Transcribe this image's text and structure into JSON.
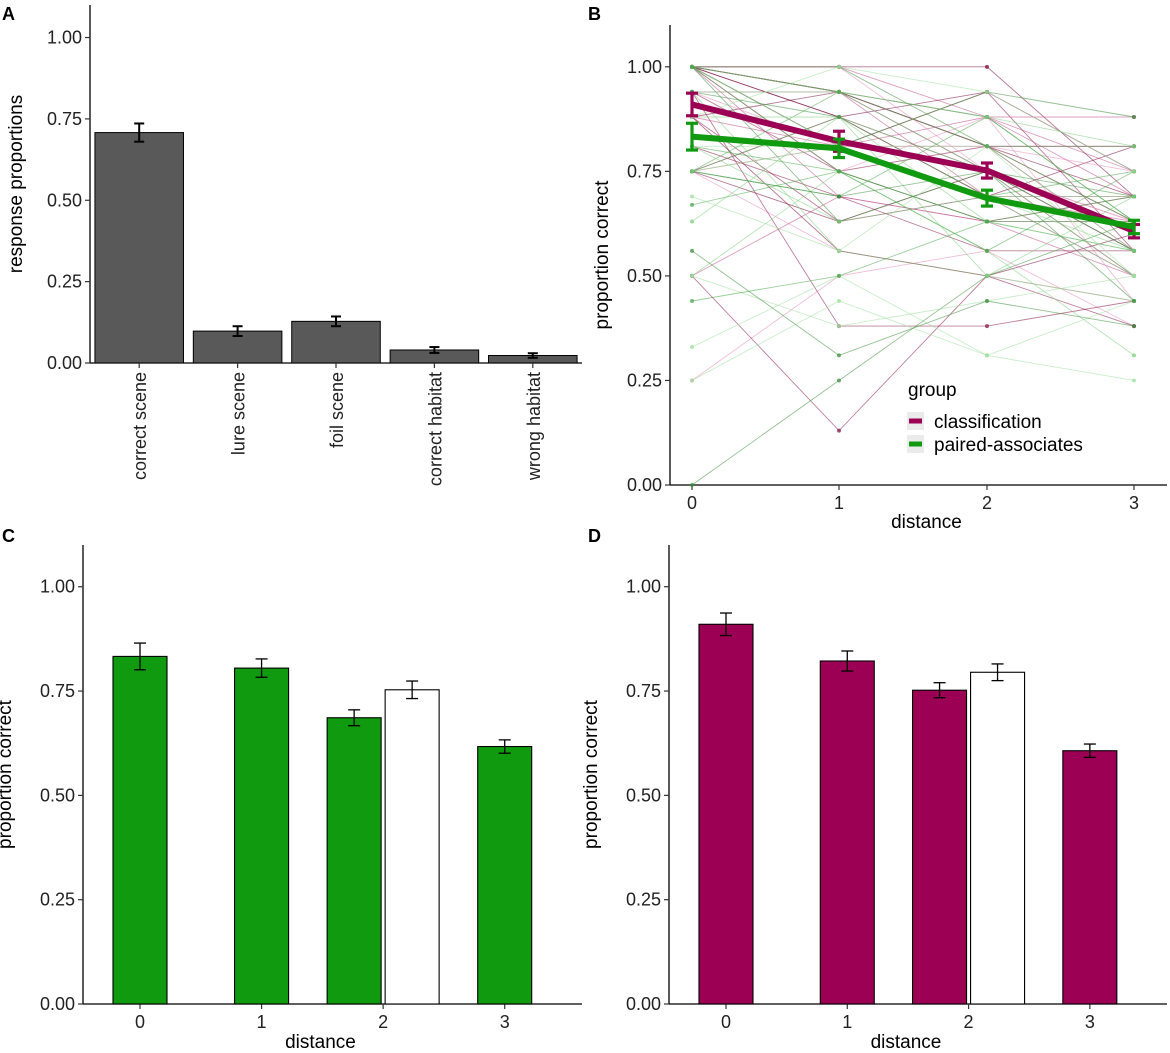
{
  "chart_data": [
    {
      "panel": "A",
      "type": "bar",
      "ylabel": "response proportions",
      "xlabel": "",
      "ylim": [
        0,
        1.1
      ],
      "yticks": [
        "0.00",
        "0.25",
        "0.50",
        "0.75",
        "1.00"
      ],
      "categories": [
        "correct scene",
        "lure scene",
        "foil scene",
        "correct habitat",
        "wrong habitat"
      ],
      "values": [
        0.708,
        0.098,
        0.128,
        0.04,
        0.023
      ],
      "errors": [
        0.028,
        0.015,
        0.015,
        0.009,
        0.007
      ],
      "color": "#595959"
    },
    {
      "panel": "B",
      "type": "line",
      "ylabel": "proportion correct",
      "xlabel": "distance",
      "xticks": [
        "0",
        "1",
        "2",
        "3"
      ],
      "ylim": [
        0,
        1.1
      ],
      "yticks": [
        "0.00",
        "0.25",
        "0.50",
        "0.75",
        "1.00"
      ],
      "legend": {
        "title": "group",
        "position": "bottom-right",
        "entries": [
          "classification",
          "paired-associates"
        ]
      },
      "series": [
        {
          "name": "classification",
          "color": "#9b0054",
          "x": [
            0,
            1,
            2,
            3
          ],
          "values": [
            0.91,
            0.822,
            0.752,
            0.607
          ],
          "errors": [
            0.027,
            0.024,
            0.018,
            0.016
          ]
        },
        {
          "name": "paired-associates",
          "color": "#0f9a0f",
          "x": [
            0,
            1,
            2,
            3
          ],
          "values": [
            0.833,
            0.805,
            0.686,
            0.617
          ],
          "errors": [
            0.032,
            0.022,
            0.019,
            0.016
          ]
        }
      ],
      "individual_lines": {
        "classification": [
          [
            1.0,
            0.94,
            0.81,
            0.63
          ],
          [
            1.0,
            1.0,
            0.88,
            0.75
          ],
          [
            0.75,
            0.56,
            0.5,
            0.44
          ],
          [
            0.88,
            0.94,
            0.81,
            0.69
          ],
          [
            1.0,
            0.81,
            0.94,
            0.56
          ],
          [
            0.5,
            0.69,
            0.63,
            0.5
          ],
          [
            0.75,
            0.88,
            0.75,
            0.63
          ],
          [
            1.0,
            0.88,
            0.69,
            0.81
          ],
          [
            1.0,
            0.75,
            0.81,
            0.56
          ],
          [
            0.94,
            0.94,
            0.88,
            0.69
          ],
          [
            0.25,
            0.5,
            0.56,
            0.38
          ],
          [
            1.0,
            1.0,
            1.0,
            0.69
          ],
          [
            0.88,
            0.63,
            0.75,
            0.5
          ],
          [
            1.0,
            0.69,
            0.63,
            0.63
          ],
          [
            0.75,
            0.81,
            0.81,
            0.75
          ],
          [
            1.0,
            0.94,
            0.75,
            0.56
          ],
          [
            0.94,
            0.38,
            0.38,
            0.44
          ],
          [
            0.75,
            0.88,
            0.69,
            0.69
          ],
          [
            1.0,
            0.75,
            0.88,
            0.44
          ],
          [
            0.88,
            0.56,
            0.5,
            0.6
          ],
          [
            0.5,
            0.13,
            0.5,
            0.38
          ],
          [
            1.0,
            0.94,
            0.69,
            0.63
          ],
          [
            0.94,
            0.81,
            0.81,
            0.81
          ],
          [
            1.0,
            0.88,
            0.94,
            0.75
          ],
          [
            0.81,
            0.69,
            0.56,
            0.56
          ],
          [
            0.88,
            0.81,
            0.88,
            0.88
          ],
          [
            1.0,
            1.0,
            0.75,
            0.63
          ],
          [
            0.75,
            0.63,
            0.69,
            0.5
          ],
          [
            0.94,
            0.75,
            0.63,
            0.69
          ],
          [
            1.0,
            0.94,
            0.81,
            0.81
          ]
        ],
        "paired-associates": [
          [
            0.67,
            0.75,
            0.63,
            0.56
          ],
          [
            1.0,
            0.94,
            0.75,
            0.5
          ],
          [
            0.33,
            0.5,
            0.31,
            0.44
          ],
          [
            0.0,
            0.25,
            0.5,
            0.63
          ],
          [
            0.75,
            0.88,
            0.69,
            0.75
          ],
          [
            0.5,
            0.75,
            0.56,
            0.31
          ],
          [
            0.81,
            0.81,
            0.81,
            0.56
          ],
          [
            1.0,
            0.63,
            0.75,
            0.69
          ],
          [
            0.75,
            0.94,
            0.88,
            0.63
          ],
          [
            0.88,
            0.88,
            0.63,
            0.56
          ],
          [
            0.5,
            0.38,
            0.44,
            0.5
          ],
          [
            1.0,
            1.0,
            0.81,
            0.81
          ],
          [
            0.75,
            0.69,
            0.88,
            0.63
          ],
          [
            0.94,
            0.56,
            0.5,
            0.69
          ],
          [
            0.25,
            0.44,
            0.31,
            0.25
          ],
          [
            1.0,
            0.81,
            0.94,
            0.88
          ],
          [
            0.81,
            0.75,
            0.56,
            0.75
          ],
          [
            0.63,
            0.88,
            0.5,
            0.44
          ],
          [
            1.0,
            0.81,
            0.69,
            0.5
          ],
          [
            0.75,
            0.69,
            0.75,
            0.56
          ],
          [
            0.44,
            0.5,
            0.63,
            0.69
          ],
          [
            0.94,
            0.94,
            0.88,
            0.81
          ],
          [
            0.88,
            1.0,
            0.94,
            0.75
          ],
          [
            0.56,
            0.31,
            0.44,
            0.38
          ],
          [
            1.0,
            0.75,
            0.63,
            0.63
          ],
          [
            0.75,
            0.81,
            0.69,
            0.69
          ],
          [
            0.69,
            0.56,
            0.81,
            0.5
          ],
          [
            0.94,
            0.88,
            0.75,
            0.44
          ],
          [
            1.0,
            0.94,
            0.81,
            0.63
          ],
          [
            0.81,
            0.63,
            0.69,
            0.56
          ]
        ]
      }
    },
    {
      "panel": "C",
      "type": "bar",
      "ylabel": "proportion correct",
      "xlabel": "distance",
      "xticks": [
        "0",
        "1",
        "2",
        "3"
      ],
      "ylim": [
        0,
        1.1
      ],
      "yticks": [
        "0.00",
        "0.25",
        "0.50",
        "0.75",
        "1.00"
      ],
      "bars": [
        {
          "x": 0,
          "offset": 0,
          "value": 0.833,
          "error": 0.032,
          "fill": "#0f9a0f"
        },
        {
          "x": 1,
          "offset": 0,
          "value": 0.805,
          "error": 0.022,
          "fill": "#0f9a0f"
        },
        {
          "x": 2,
          "offset": -1,
          "value": 0.686,
          "error": 0.019,
          "fill": "#0f9a0f"
        },
        {
          "x": 2,
          "offset": 1,
          "value": 0.753,
          "error": 0.021,
          "fill": "#ffffff"
        },
        {
          "x": 3,
          "offset": 0,
          "value": 0.617,
          "error": 0.016,
          "fill": "#0f9a0f"
        }
      ]
    },
    {
      "panel": "D",
      "type": "bar",
      "ylabel": "proportion correct",
      "xlabel": "distance",
      "xticks": [
        "0",
        "1",
        "2",
        "3"
      ],
      "ylim": [
        0,
        1.1
      ],
      "yticks": [
        "0.00",
        "0.25",
        "0.50",
        "0.75",
        "1.00"
      ],
      "bars": [
        {
          "x": 0,
          "offset": 0,
          "value": 0.91,
          "error": 0.027,
          "fill": "#9b0054"
        },
        {
          "x": 1,
          "offset": 0,
          "value": 0.822,
          "error": 0.024,
          "fill": "#9b0054"
        },
        {
          "x": 2,
          "offset": -1,
          "value": 0.752,
          "error": 0.018,
          "fill": "#9b0054"
        },
        {
          "x": 2,
          "offset": 1,
          "value": 0.795,
          "error": 0.02,
          "fill": "#ffffff"
        },
        {
          "x": 3,
          "offset": 0,
          "value": 0.607,
          "error": 0.016,
          "fill": "#9b0054"
        }
      ]
    }
  ]
}
